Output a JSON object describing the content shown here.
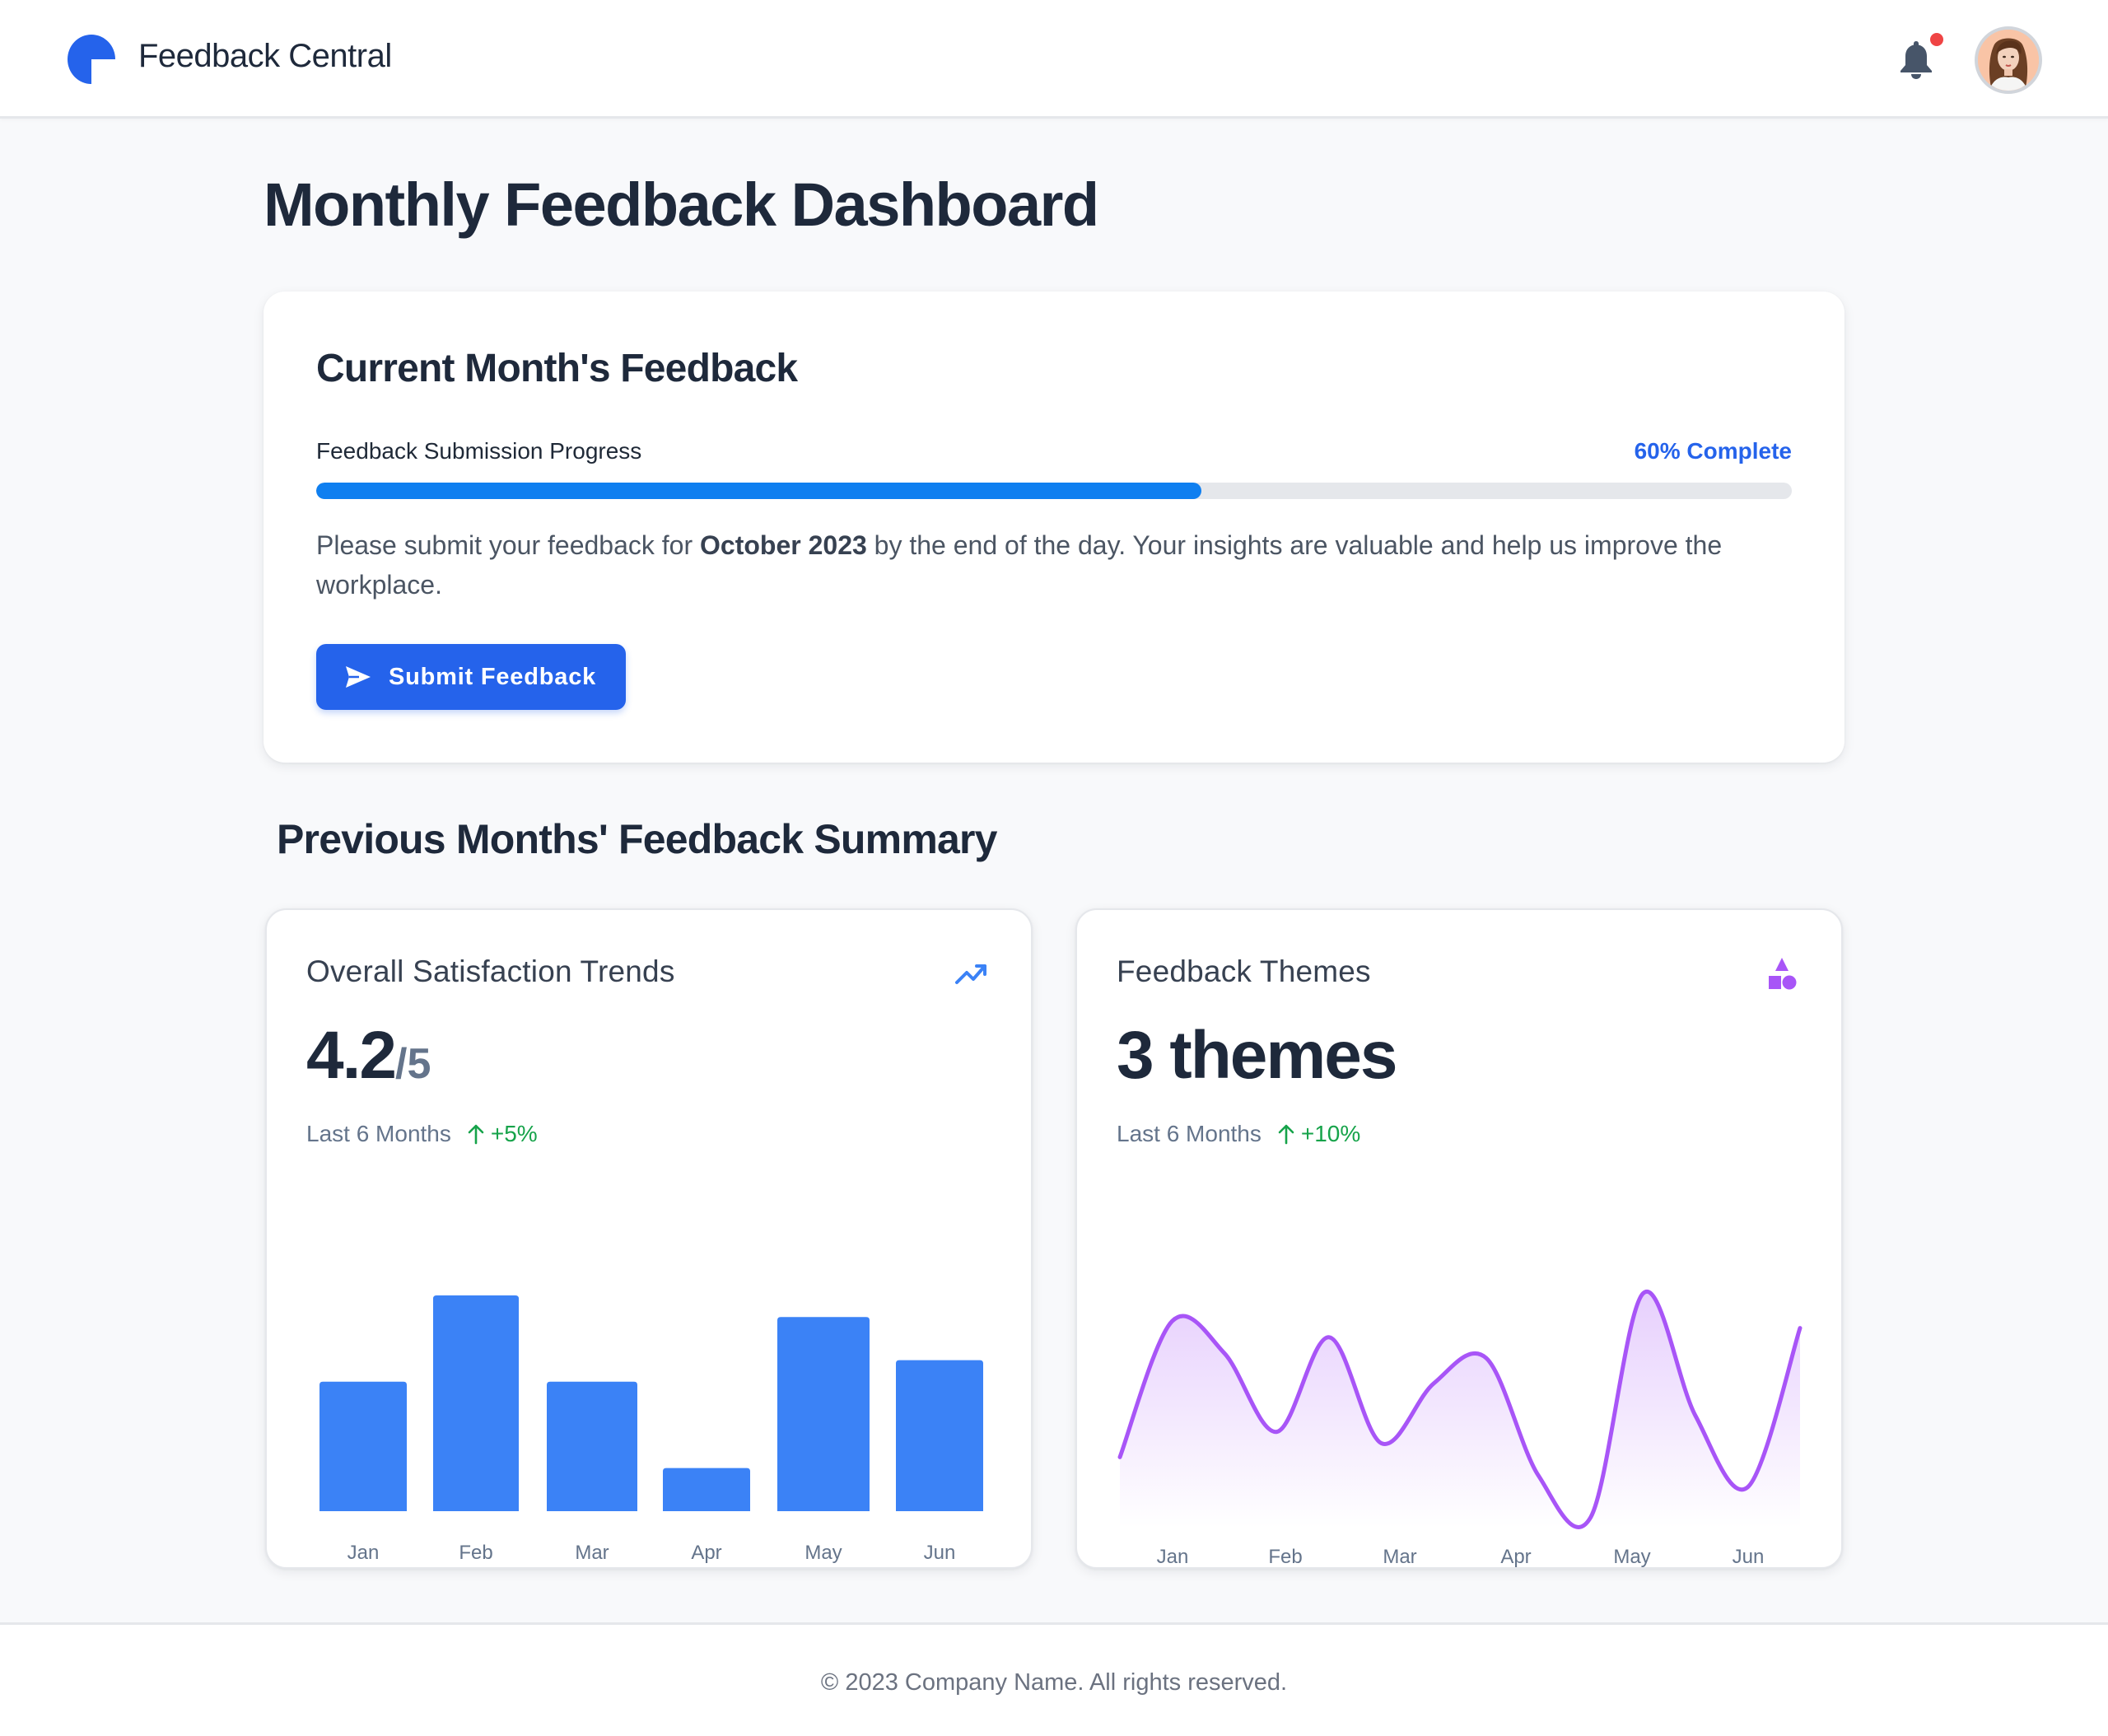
{
  "header": {
    "brand": "Feedback Central",
    "logo_icon": "pie-logo-icon",
    "notification_icon": "bell-icon",
    "notification_badge": true,
    "avatar": "user-avatar"
  },
  "page": {
    "title": "Monthly Feedback Dashboard"
  },
  "current_month": {
    "title": "Current Month's Feedback",
    "progress_label": "Feedback Submission Progress",
    "progress_percent": 60,
    "progress_text": "60% Complete",
    "message_before": "Please submit your feedback for ",
    "message_highlight": "October 2023",
    "message_after": " by the end of the day. Your insights are valuable and help us improve the workplace.",
    "submit_label": "Submit Feedback",
    "submit_icon": "send-icon"
  },
  "summary": {
    "title": "Previous Months' Feedback Summary",
    "cards": [
      {
        "title": "Overall Satisfaction Trends",
        "icon": "trending-up-icon",
        "value": "4.2",
        "denominator": "/5",
        "period": "Last 6 Months",
        "change": "+5%"
      },
      {
        "title": "Feedback Themes",
        "icon": "shapes-icon",
        "value": "3 themes",
        "period": "Last 6 Months",
        "change": "+10%"
      }
    ]
  },
  "chart_data": [
    {
      "type": "bar",
      "title": "Overall Satisfaction Trends",
      "categories": [
        "Jan",
        "Feb",
        "Mar",
        "Apr",
        "May",
        "Jun"
      ],
      "values": [
        60,
        100,
        60,
        20,
        90,
        70
      ],
      "xlabel": "",
      "ylabel": "",
      "grid": false,
      "color": "#3b82f6"
    },
    {
      "type": "area",
      "title": "Feedback Themes",
      "categories": [
        "Jan",
        "Feb",
        "Mar",
        "Apr",
        "May",
        "Jun"
      ],
      "x": [
        0,
        1,
        2,
        3,
        4,
        5,
        6,
        7,
        8,
        9,
        10,
        11,
        12,
        13
      ],
      "values": [
        27,
        86,
        72,
        38,
        79,
        33,
        59,
        70,
        19,
        1,
        98,
        45,
        14,
        83
      ],
      "xlabel": "",
      "ylabel": "",
      "grid": false,
      "color": "#a855f7"
    }
  ],
  "colors": {
    "primary": "#2563eb",
    "progress": "#0f7ff0",
    "bar": "#3b82f6",
    "line": "#a855f7",
    "positive": "#16a34a",
    "badge": "#ef4444"
  },
  "footer": {
    "text": "© 2023 Company Name. All rights reserved."
  }
}
